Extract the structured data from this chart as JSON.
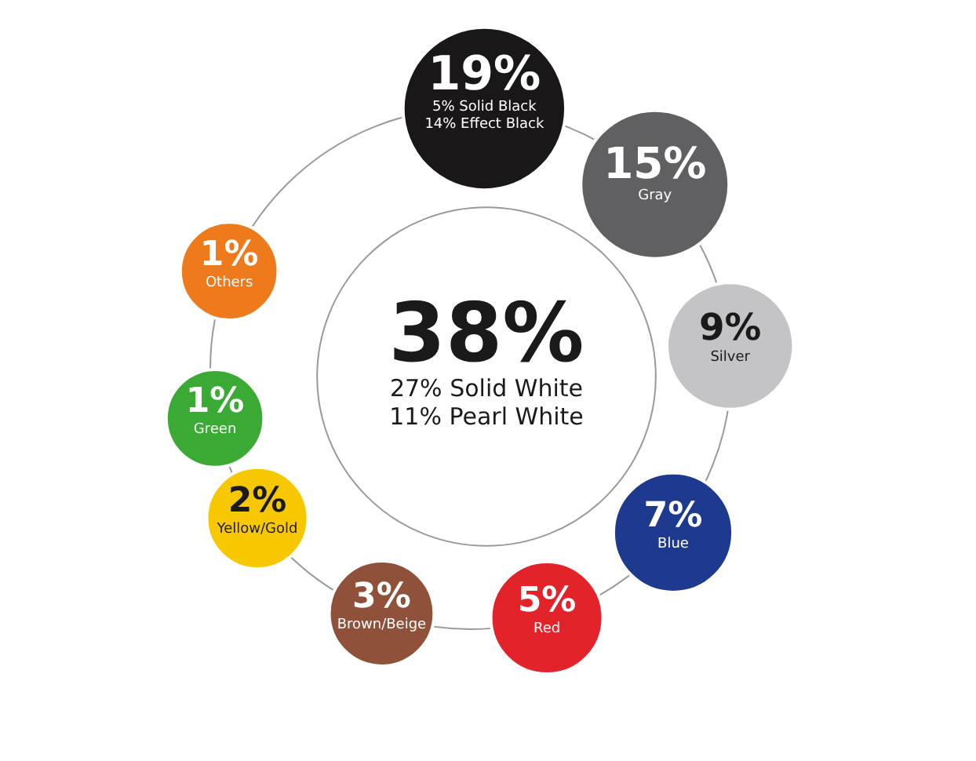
{
  "chart_data": {
    "type": "other",
    "categories": [
      "27% Solid White\n11% Pearl White",
      "5% Solid Black\n14% Effect Black",
      "Gray",
      "Silver",
      "Blue",
      "Red",
      "Brown/Beige",
      "Yellow/Gold",
      "Green",
      "Others"
    ],
    "values": [
      38,
      19,
      15,
      9,
      7,
      5,
      3,
      2,
      1,
      1
    ],
    "value_labels": [
      "38%",
      "19%",
      "15%",
      "9%",
      "7%",
      "5%",
      "3%",
      "2%",
      "1%",
      "1%"
    ],
    "colors": [
      "#ffffff",
      "#1a1718",
      "#606062",
      "#c4c4c6",
      "#1d3a8e",
      "#e2232a",
      "#8f5139",
      "#f7c800",
      "#3aaa35",
      "#ee7a1c"
    ]
  }
}
